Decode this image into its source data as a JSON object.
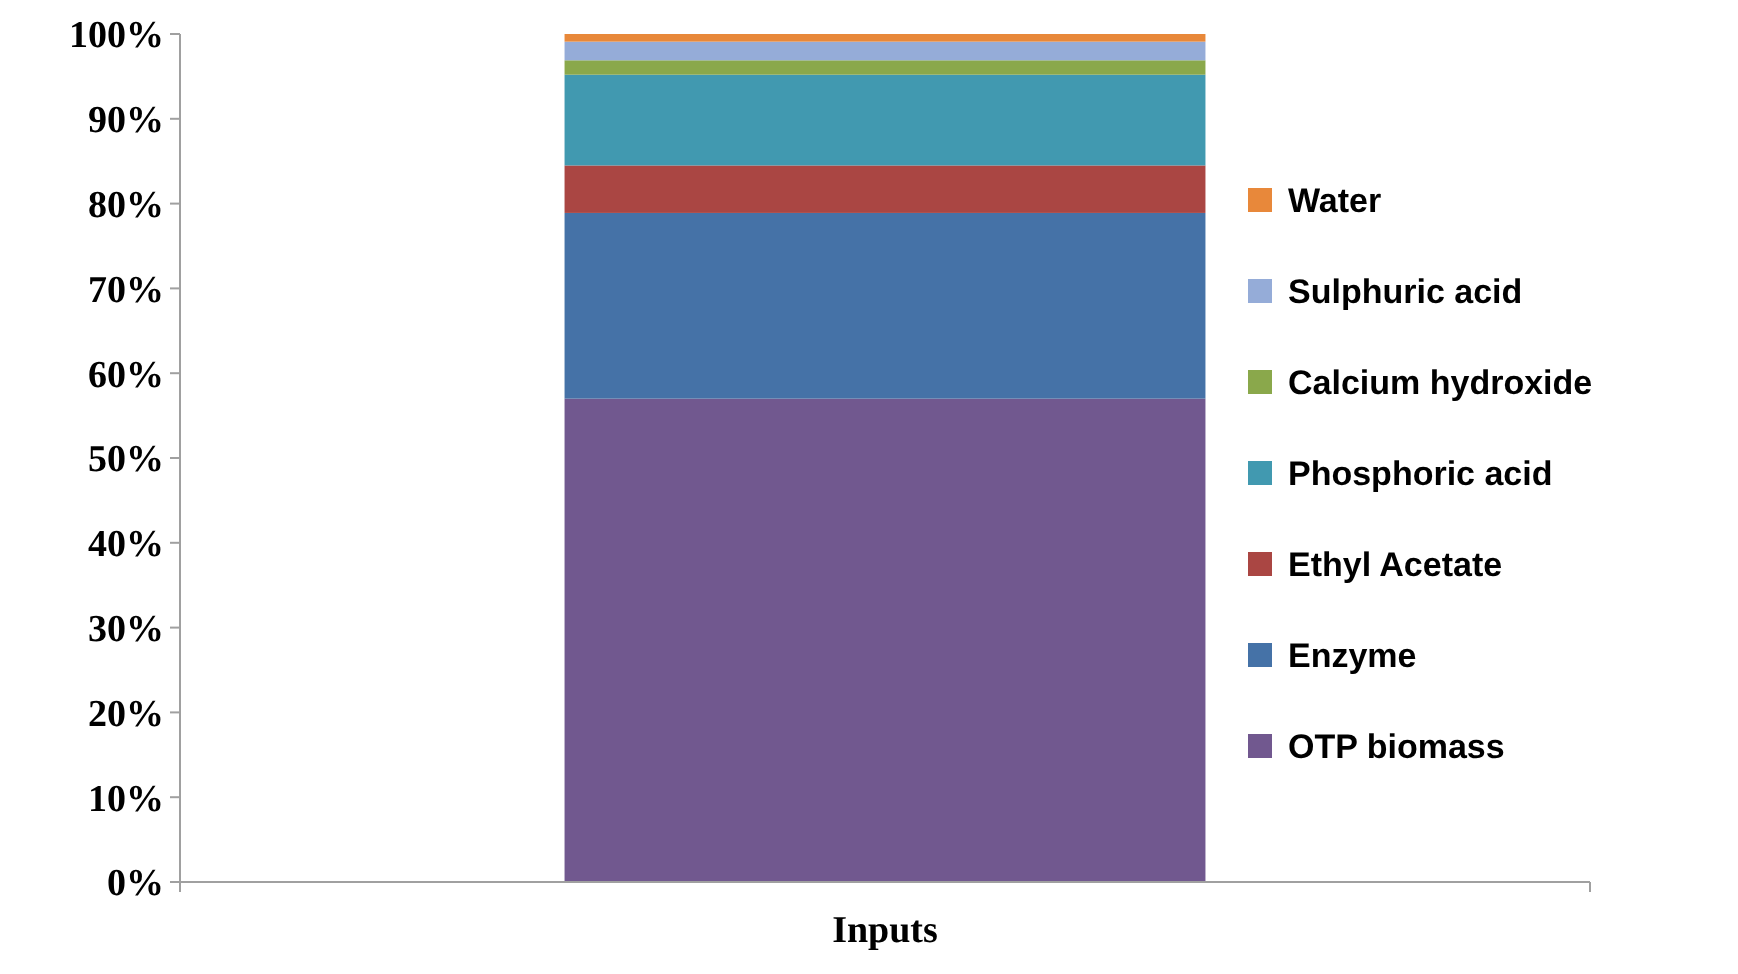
{
  "chart_data": {
    "type": "bar",
    "stacked": true,
    "xlabel": null,
    "categories": [
      "Inputs"
    ],
    "series": [
      {
        "name": "OTP biomass",
        "color": "#71588f",
        "values": [
          57
        ]
      },
      {
        "name": "Enzyme",
        "color": "#4572a7",
        "values": [
          21.9
        ]
      },
      {
        "name": "Ethyl Acetate",
        "color": "#aa4643",
        "values": [
          5.6
        ]
      },
      {
        "name": "Phosphoric acid",
        "color": "#4199b0",
        "values": [
          10.7
        ]
      },
      {
        "name": "Calcium hydroxide",
        "color": "#8aa84b",
        "values": [
          1.7
        ]
      },
      {
        "name": "Sulphuric acid",
        "color": "#95acd8",
        "values": [
          2.2
        ]
      },
      {
        "name": "Water",
        "color": "#e8883a",
        "values": [
          0.9
        ]
      }
    ],
    "ylim": [
      0,
      100
    ],
    "yticks": [
      {
        "value": 0,
        "label": "0%"
      },
      {
        "value": 10,
        "label": "10%"
      },
      {
        "value": 20,
        "label": "20%"
      },
      {
        "value": 30,
        "label": "30%"
      },
      {
        "value": 40,
        "label": "40%"
      },
      {
        "value": 50,
        "label": "50%"
      },
      {
        "value": 60,
        "label": "60%"
      },
      {
        "value": 70,
        "label": "70%"
      },
      {
        "value": 80,
        "label": "80%"
      },
      {
        "value": 90,
        "label": "90%"
      },
      {
        "value": 100,
        "label": "100%"
      }
    ],
    "legend": "right",
    "grid": false
  }
}
